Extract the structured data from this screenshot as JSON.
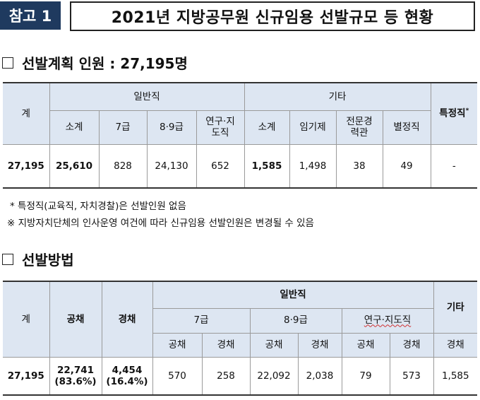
{
  "header": {
    "tag": "참고 1",
    "title": "2021년 지방공무원 신규임용 선발규모 등 현황"
  },
  "section1": {
    "title": "선발계획 인원 : 27,195명"
  },
  "table1": {
    "total": "계",
    "general": "일반직",
    "other": "기타",
    "special": "특정직",
    "special_mark": "*",
    "sub_general": [
      "소계",
      "7급",
      "8·9급",
      "연구·지도직"
    ],
    "sub_other": [
      "소계",
      "임기제",
      "전문경력관",
      "별정직"
    ],
    "row": [
      "27,195",
      "25,610",
      "828",
      "24,130",
      "652",
      "1,585",
      "1,498",
      "38",
      "49",
      "-"
    ]
  },
  "notes": {
    "note1": "* 특정직(교육직, 자치경찰)은 선발인원 없음",
    "note2": "※ 지방자치단체의 인사운영 여건에 따라 신규임용 선발인원은 변경될 수 있음"
  },
  "section2": {
    "title": "선발방법"
  },
  "table2": {
    "total": "계",
    "open": "공채",
    "career": "경채",
    "general": "일반직",
    "other": "기타",
    "grades": [
      "7급",
      "8·9급",
      "연구·지도직"
    ],
    "methods": [
      "공채",
      "경채",
      "공채",
      "경채",
      "공채",
      "경채",
      "경채"
    ],
    "row_total": "27,195",
    "row_open": "22,741",
    "row_open_pct": "(83.6%)",
    "row_career": "4,454",
    "row_career_pct": "(16.4%)",
    "row_values": [
      "570",
      "258",
      "22,092",
      "2,038",
      "79",
      "573",
      "1,585"
    ]
  },
  "colors": {
    "tag_bg": "#1f3a5f",
    "header_cell_bg": "#dde6f2"
  }
}
